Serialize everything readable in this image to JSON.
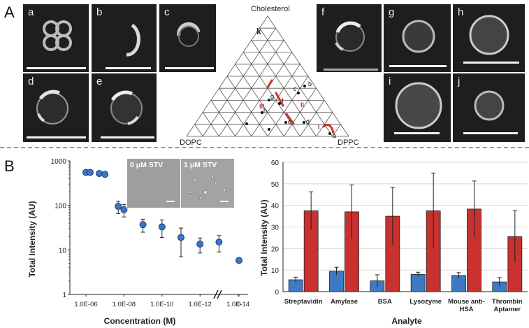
{
  "panel_a": {
    "letter": "A",
    "images": {
      "a": "a",
      "b": "b",
      "c": "c",
      "d": "d",
      "e": "e",
      "f": "f",
      "g": "g",
      "h": "h",
      "i": "i",
      "j": "j"
    },
    "ternary": {
      "top_label": "Cholesterol",
      "left_label": "DOPC",
      "right_label": "DPPC",
      "corner_label": "k",
      "region_labels": [
        "III",
        "II",
        "I"
      ],
      "point_labels": [
        "a",
        "b",
        "c",
        "d",
        "e",
        "f",
        "g",
        "h"
      ]
    }
  },
  "panel_b": {
    "letter": "B",
    "inset_labels": [
      "0 μM STV",
      "1 μM STV"
    ]
  },
  "chart_data": [
    {
      "type": "scatter",
      "xlabel": "Concentration (M)",
      "ylabel": "Total Intensity (AU)",
      "yscale": "log",
      "ylim": [
        1,
        1000
      ],
      "y_ticks": [
        "1000",
        "100",
        "10",
        "1"
      ],
      "x_ticks": [
        "1.0E-06",
        "1.0E-08",
        "1.0E-10",
        "1.0E-12",
        "1.0E-14",
        "0"
      ],
      "points": [
        {
          "x": "1.0E-06",
          "y": 550
        },
        {
          "x": "6.0E-07",
          "y": 550
        },
        {
          "x": "2.0E-07",
          "y": 520
        },
        {
          "x": "1.0E-07",
          "y": 500
        },
        {
          "x": "2.0E-08",
          "y": 95,
          "err": 30
        },
        {
          "x": "1.0E-08",
          "y": 80,
          "err": 25
        },
        {
          "x": "1.0E-09",
          "y": 37,
          "err": 12
        },
        {
          "x": "1.0E-10",
          "y": 33,
          "err": 14
        },
        {
          "x": "1.0E-11",
          "y": 19,
          "err": 12
        },
        {
          "x": "1.0E-12",
          "y": 13.5,
          "err": 5
        },
        {
          "x": "1.0E-13",
          "y": 15,
          "err": 6
        },
        {
          "x": "0",
          "y": 5.8
        }
      ]
    },
    {
      "type": "bar",
      "title": "",
      "xlabel": "Analyte",
      "ylabel": "Total Intensity (AU)",
      "ylim": [
        0,
        60
      ],
      "y_ticks": [
        "0",
        "10",
        "20",
        "30",
        "40",
        "50",
        "60"
      ],
      "categories": [
        "Streptavidin",
        "Amylase",
        "BSA",
        "Lysozyme",
        "Mouse anti-HSA",
        "Thrombin Aptamer"
      ],
      "category_lines": [
        [
          "Streptavidin"
        ],
        [
          "Amylase"
        ],
        [
          "BSA"
        ],
        [
          "Lysozyme"
        ],
        [
          "Mouse anti-",
          "HSA"
        ],
        [
          "Thrombin",
          "Aptamer"
        ]
      ],
      "series": [
        {
          "name": "blue",
          "color": "#3f79c4",
          "values": [
            5.5,
            9.5,
            5,
            8,
            7.5,
            4.5
          ],
          "errors": [
            1.2,
            1.8,
            2.8,
            1.0,
            1.3,
            2.0
          ]
        },
        {
          "name": "red",
          "color": "#c8312e",
          "values": [
            37.5,
            37,
            35,
            37.5,
            38.3,
            25.5
          ],
          "errors": [
            8.8,
            12.5,
            13.3,
            17.5,
            13,
            12
          ]
        }
      ]
    }
  ]
}
